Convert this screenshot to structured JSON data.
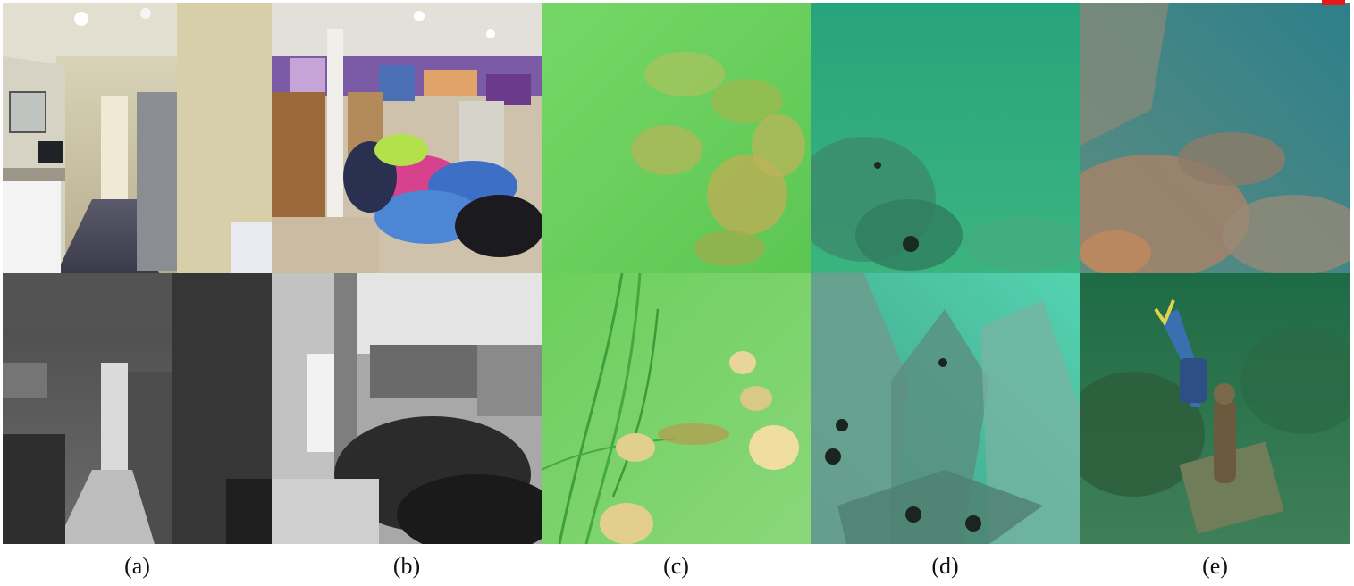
{
  "figure": {
    "panel_labels": [
      "(a)",
      "(b)",
      "(c)",
      "(d)",
      "(e)"
    ],
    "panels": [
      {
        "label": "(a)",
        "top": {
          "content": "indoor-hallway-rgb-photo",
          "colors": [
            "#c8c1a5",
            "#4b4a5c",
            "#e6e2d2"
          ]
        },
        "bottom": {
          "content": "indoor-hallway-depth-map",
          "colors": [
            "#5a5a5a",
            "#2a2a2a",
            "#e8e8e8"
          ]
        }
      },
      {
        "label": "(b)",
        "top": {
          "content": "store-interior-rgb-photo",
          "colors": [
            "#d9c7b0",
            "#3b5fa8",
            "#d93f8c"
          ]
        },
        "bottom": {
          "content": "store-interior-depth-map",
          "colors": [
            "#9a9a9a",
            "#1e1e1e",
            "#f2f2f2"
          ]
        }
      },
      {
        "label": "(c)",
        "top": {
          "content": "underwater-sea-cucumbers-photo",
          "colors": [
            "#6fd45f",
            "#b7c06a"
          ]
        },
        "bottom": {
          "content": "underwater-seagrass-scallops-photo",
          "colors": [
            "#79d266",
            "#d9c98a"
          ]
        }
      },
      {
        "label": "(d)",
        "top": {
          "content": "underwater-rocky-seafloor-photo",
          "colors": [
            "#35b07e",
            "#2f8c6a"
          ]
        },
        "bottom": {
          "content": "underwater-rocks-urchins-photo",
          "colors": [
            "#5fbfa0",
            "#2e8a72"
          ]
        }
      },
      {
        "label": "(e)",
        "top": {
          "content": "underwater-coral-reef-photo",
          "colors": [
            "#3c8b88",
            "#b08d6a"
          ]
        },
        "bottom": {
          "content": "underwater-diver-statue-photo",
          "colors": [
            "#1f7a4a",
            "#5a8a5a"
          ]
        }
      }
    ],
    "accent_mark_color": "#e21b1b"
  }
}
